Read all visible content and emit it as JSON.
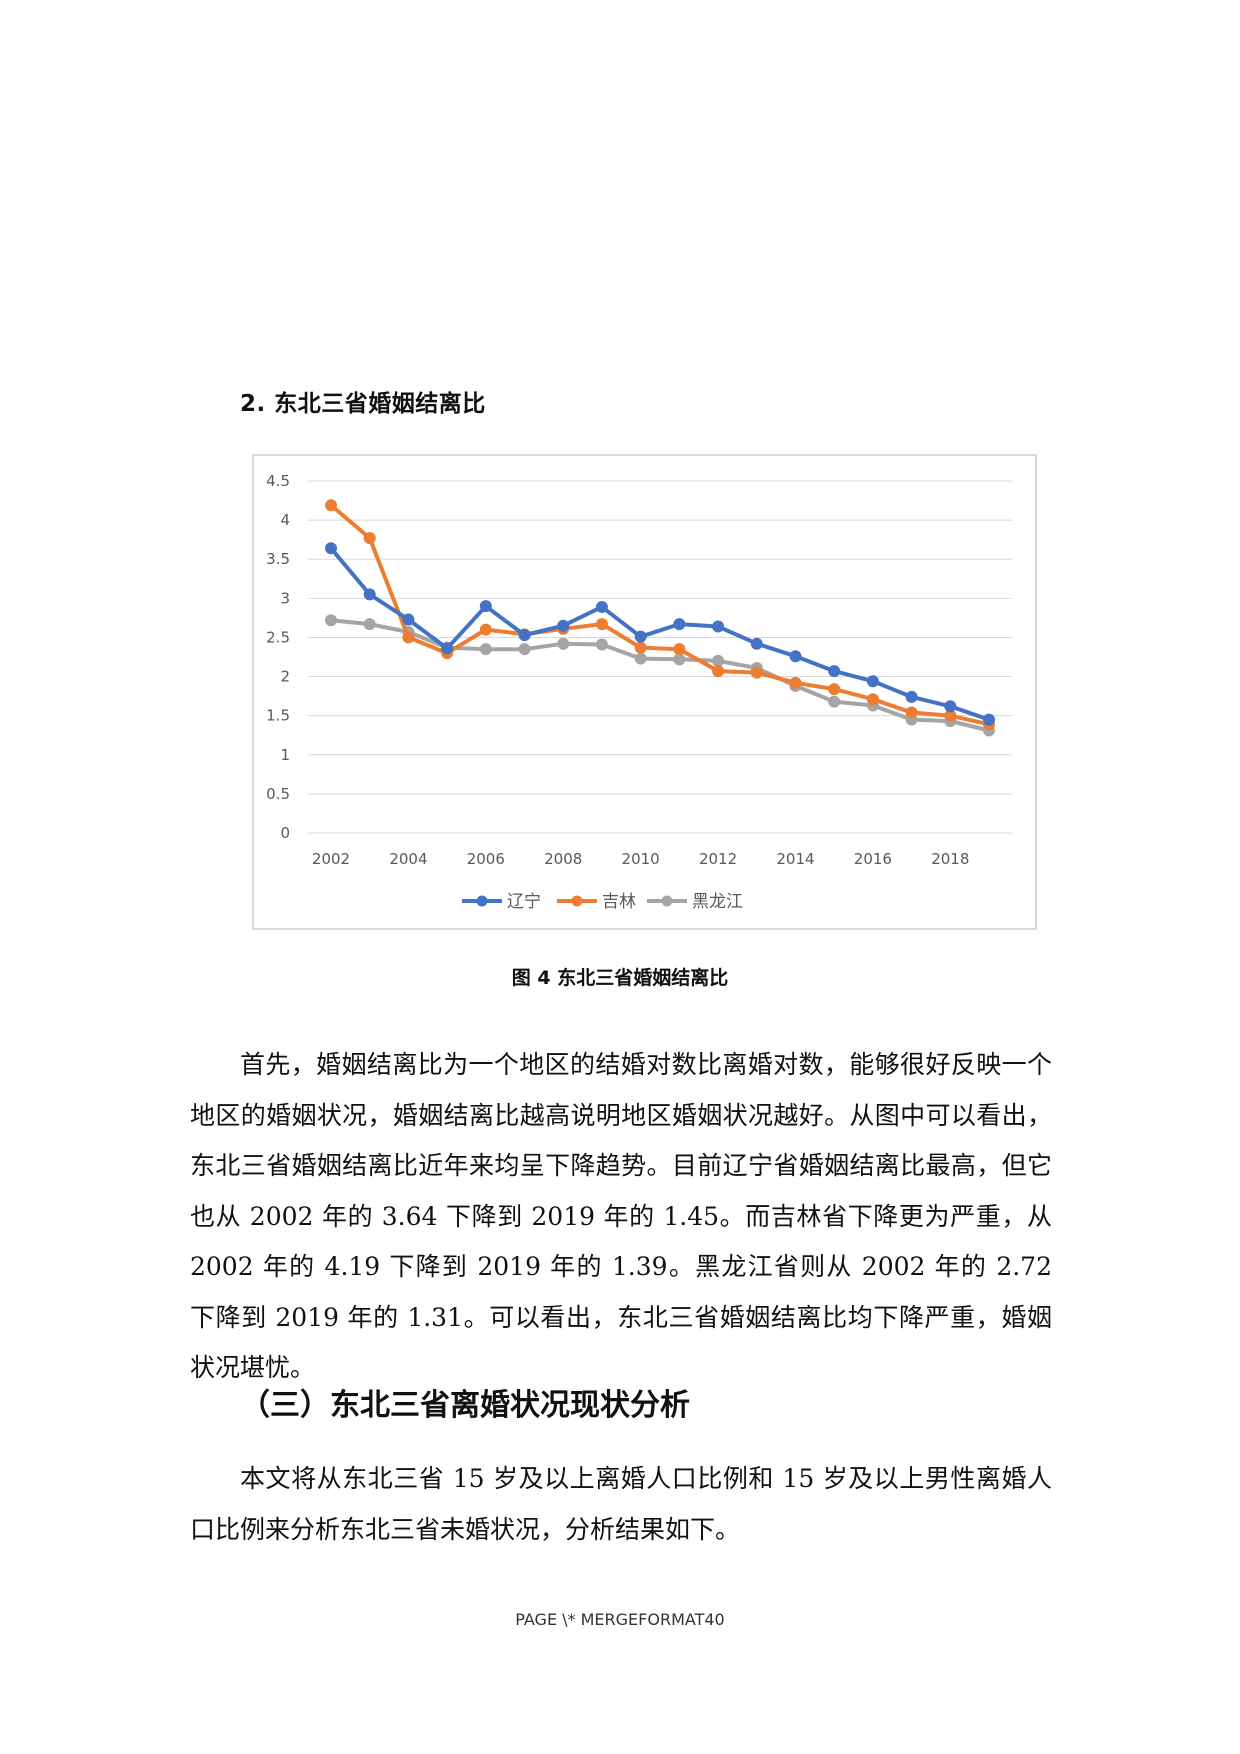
{
  "section_heading": "2. 东北三省婚姻结离比",
  "figure_caption": "图 4 东北三省婚姻结离比",
  "paragraph1": "首先，婚姻结离比为一个地区的结婚对数比离婚对数，能够很好反映一个地区的婚姻状况，婚姻结离比越高说明地区婚姻状况越好。从图中可以看出，东北三省婚姻结离比近年来均呈下降趋势。目前辽宁省婚姻结离比最高，但它也从 2002 年的 3.64 下降到 2019 年的 1.45。而吉林省下降更为严重，从 2002 年的 4.19 下降到 2019 年的 1.39。黑龙江省则从 2002 年的 2.72 下降到 2019 年的 1.31。可以看出，东北三省婚姻结离比均下降严重，婚姻状况堪忧。",
  "subsection_heading": "（三）东北三省离婚状况现状分析",
  "paragraph2": "本文将从东北三省 15 岁及以上离婚人口比例和 15 岁及以上男性离婚人口比例来分析东北三省未婚状况，分析结果如下。",
  "page_footer": "PAGE \\* MERGEFORMAT40",
  "chart_data": {
    "type": "line",
    "x": [
      2002,
      2003,
      2004,
      2005,
      2006,
      2007,
      2008,
      2009,
      2010,
      2011,
      2012,
      2013,
      2014,
      2015,
      2016,
      2017,
      2018,
      2019
    ],
    "x_tick_labels": [
      "2002",
      "2004",
      "2006",
      "2008",
      "2010",
      "2012",
      "2014",
      "2016",
      "2018"
    ],
    "y_tick_labels": [
      "0",
      "0.5",
      "1",
      "1.5",
      "2",
      "2.5",
      "3",
      "3.5",
      "4",
      "4.5"
    ],
    "ylim": [
      0,
      4.5
    ],
    "grid": true,
    "legend_position": "bottom",
    "series": [
      {
        "name": "辽宁",
        "color": "#4472c4",
        "values": [
          3.64,
          3.05,
          2.73,
          2.36,
          2.9,
          2.53,
          2.65,
          2.89,
          2.51,
          2.67,
          2.64,
          2.42,
          2.26,
          2.07,
          1.94,
          1.74,
          1.62,
          1.45
        ]
      },
      {
        "name": "吉林",
        "color": "#ed7d31",
        "values": [
          4.19,
          3.77,
          2.5,
          2.3,
          2.6,
          2.54,
          2.61,
          2.67,
          2.37,
          2.35,
          2.07,
          2.05,
          1.92,
          1.84,
          1.71,
          1.54,
          1.5,
          1.39
        ]
      },
      {
        "name": "黑龙江",
        "color": "#a5a5a5",
        "values": [
          2.72,
          2.67,
          2.57,
          2.37,
          2.35,
          2.35,
          2.42,
          2.41,
          2.23,
          2.22,
          2.2,
          2.11,
          1.88,
          1.68,
          1.63,
          1.45,
          1.43,
          1.31
        ]
      }
    ]
  }
}
